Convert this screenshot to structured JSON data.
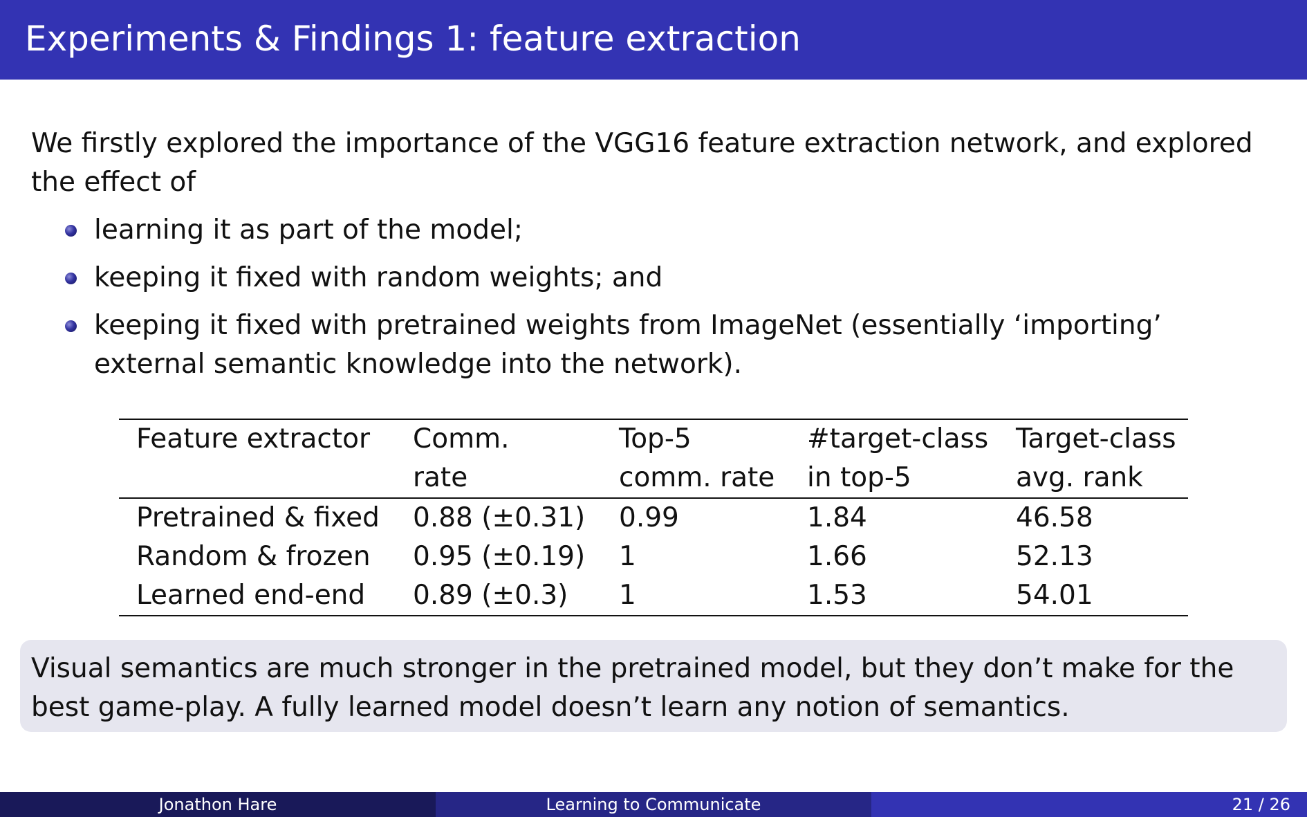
{
  "slide": {
    "title": "Experiments & Findings 1: feature extraction",
    "intro": "We firstly explored the importance of the VGG16 feature extraction network, and explored the effect of",
    "bullets": [
      "learning it as part of the model;",
      "keeping it fixed with random weights; and",
      "keeping it fixed with pretrained weights from ImageNet (essentially ‘importing’ external semantic knowledge into the network)."
    ]
  },
  "table": {
    "headers": [
      [
        "Feature extractor",
        ""
      ],
      [
        "Comm.",
        "rate"
      ],
      [
        "Top-5",
        "comm. rate"
      ],
      [
        "#target-class",
        "in top-5"
      ],
      [
        "Target-class",
        "avg. rank"
      ]
    ],
    "rows": [
      [
        "Pretrained & fixed",
        "0.88 (±0.31)",
        "0.99",
        "1.84",
        "46.58"
      ],
      [
        "Random & frozen",
        "0.95 (±0.19)",
        "1",
        "1.66",
        "52.13"
      ],
      [
        "Learned end-end",
        "0.89 (±0.3)",
        "1",
        "1.53",
        "54.01"
      ]
    ]
  },
  "summary": "Visual semantics are much stronger in the pretrained model, but they don’t make for the best game-play. A fully learned model doesn’t learn any notion of semantics.",
  "footer": {
    "author": "Jonathon Hare",
    "talk_title": "Learning to Communicate",
    "page": "21 / 26"
  },
  "colors": {
    "title_bar": "#3333b3",
    "footer_left": "#191959",
    "footer_mid": "#262686",
    "footer_right": "#3333b3",
    "summary_box": "#e6e6ef"
  }
}
